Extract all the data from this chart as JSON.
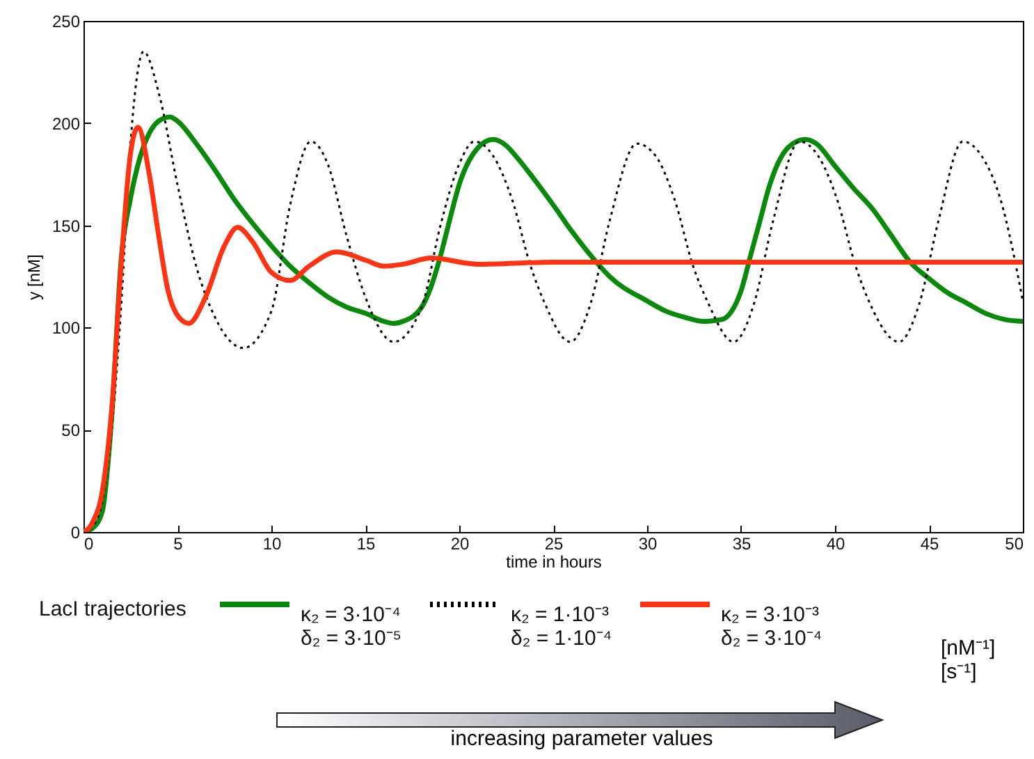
{
  "chart_data": {
    "type": "line",
    "xlabel": "time in hours",
    "ylabel": "y [nM]",
    "legend_title": "LacI trajectories",
    "legend": "bottom",
    "grid": false,
    "xlim": [
      0,
      50
    ],
    "ylim": [
      0,
      250
    ],
    "xticks": [
      0,
      5,
      10,
      15,
      20,
      25,
      30,
      35,
      40,
      45,
      50
    ],
    "yticks": [
      0,
      50,
      100,
      150,
      200,
      250
    ],
    "series": [
      {
        "name": "κ₂ = 3·10⁻⁴\nδ₂ = 3·10⁻⁵",
        "color": "#0a8a0a",
        "line_style": "solid",
        "x": [
          0,
          0.5,
          1,
          1.5,
          2,
          2.5,
          3,
          3.5,
          4,
          4.6,
          5,
          6,
          7,
          8,
          9,
          10,
          11,
          12,
          13,
          14,
          15,
          16,
          16.5,
          17,
          18,
          18.5,
          19,
          19.5,
          20,
          21,
          21.8,
          22.5,
          23,
          23.7,
          25,
          26,
          27.3,
          28,
          30,
          31,
          32,
          33,
          34,
          34.5,
          35,
          35.5,
          36,
          36.5,
          37,
          37.5,
          38.4,
          39,
          40,
          41,
          42,
          43,
          44,
          45,
          46,
          47,
          48,
          49,
          50
        ],
        "values": [
          0,
          2,
          10,
          56,
          133,
          163,
          183,
          195,
          201,
          203,
          201,
          190,
          177,
          163,
          151,
          140,
          130,
          122,
          115,
          110,
          107,
          103,
          102,
          103,
          110,
          120,
          135,
          153,
          170,
          188,
          192,
          189,
          184,
          176,
          160,
          147,
          132,
          125,
          113,
          108,
          105,
          103,
          104,
          108,
          118,
          135,
          152,
          169,
          181,
          188,
          192,
          190,
          179,
          168,
          158,
          145,
          132,
          124,
          117,
          112,
          107,
          104,
          103
        ]
      },
      {
        "name": "κ₂ = 1·10⁻³\nδ₂ = 1·10⁻⁴",
        "color": "#000000",
        "line_style": "dotted",
        "x": [
          0,
          0.5,
          1,
          1.5,
          2,
          2.5,
          3.2,
          4,
          5,
          6,
          7,
          8.5,
          10,
          11,
          12.1,
          13,
          14,
          15,
          16.5,
          18,
          19,
          20,
          20.8,
          21.8,
          22.8,
          23.8,
          24.5,
          25.9,
          27,
          28,
          29.45,
          30.45,
          31.45,
          32.45,
          33.2,
          34.6,
          35.7,
          36.7,
          38.1,
          39.1,
          40.1,
          41.1,
          41.8,
          43.4,
          44.5,
          45.5,
          46.8,
          47.8,
          48.8,
          50
        ],
        "values": [
          0,
          3,
          15,
          50,
          110,
          190,
          235,
          215,
          170,
          130,
          105,
          90,
          108,
          160,
          191,
          180,
          145,
          115,
          93,
          110,
          150,
          180,
          191,
          184,
          163,
          130,
          113,
          93,
          112,
          152,
          190,
          184,
          163,
          130,
          113,
          93,
          112,
          152,
          191,
          184,
          163,
          130,
          113,
          93,
          112,
          152,
          191,
          184,
          163,
          113
        ]
      },
      {
        "name": "κ₂ = 3·10⁻³\nδ₂ = 3·10⁻⁴",
        "color": "#ff3311",
        "line_style": "solid",
        "x": [
          0,
          0.5,
          1,
          1.5,
          2,
          2.5,
          2.9,
          3.5,
          4,
          4.5,
          5,
          5.6,
          6.5,
          7.5,
          8.2,
          9,
          10,
          11,
          12,
          13.5,
          15,
          16,
          17,
          18.5,
          21,
          25,
          30,
          35,
          40,
          45,
          50
        ],
        "values": [
          0,
          5,
          20,
          60,
          130,
          185,
          198,
          175,
          145,
          118,
          106,
          102,
          115,
          140,
          149,
          142,
          127,
          123,
          130,
          137,
          133,
          130,
          131,
          134,
          131,
          132,
          132,
          132,
          132,
          132,
          132
        ]
      }
    ],
    "annotations": [
      "[nM⁻¹]",
      "[s⁻¹]",
      "increasing parameter values"
    ]
  }
}
